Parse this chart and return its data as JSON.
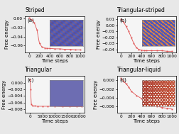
{
  "panels": [
    {
      "title": "Striped",
      "label": "(a)",
      "xlabel": "Time steps",
      "ylabel": "Free energy",
      "xlim": [
        -80,
        1080
      ],
      "ylim": [
        -0.075,
        0.005
      ],
      "yticks": [
        0,
        -0.02,
        -0.04,
        -0.06
      ],
      "xticks": [
        0,
        200,
        400,
        600,
        800,
        1000
      ],
      "x_data": [
        0,
        50,
        100,
        150,
        200,
        250,
        300,
        350,
        400,
        500,
        600,
        700,
        800,
        900,
        1000
      ],
      "y_data": [
        0.001,
        -0.003,
        -0.01,
        -0.025,
        -0.055,
        -0.063,
        -0.065,
        -0.066,
        -0.066,
        -0.067,
        -0.067,
        -0.068,
        -0.068,
        -0.069,
        -0.069
      ],
      "inset_type": "striped",
      "line_color": "#e05050",
      "marker_color": "#e05050"
    },
    {
      "title": "Triangular-striped",
      "label": "(b)",
      "xlabel": "Time steps",
      "ylabel": "Free energy",
      "xlim": [
        -80,
        1080
      ],
      "ylim": [
        -0.045,
        0.015
      ],
      "yticks": [
        0.01,
        0,
        -0.01,
        -0.02,
        -0.03,
        -0.04
      ],
      "xticks": [
        0,
        200,
        400,
        600,
        800,
        1000
      ],
      "x_data": [
        0,
        50,
        100,
        150,
        200,
        250,
        300,
        350,
        400,
        450,
        500,
        600,
        700,
        800,
        900,
        1000
      ],
      "y_data": [
        0.01,
        0.005,
        -0.002,
        -0.01,
        -0.02,
        -0.03,
        -0.037,
        -0.04,
        -0.041,
        -0.042,
        -0.042,
        -0.042,
        -0.042,
        -0.042,
        -0.043,
        -0.043
      ],
      "inset_type": "triangular_striped",
      "line_color": "#e05050",
      "marker_color": "#e05050"
    },
    {
      "title": "Triangular",
      "label": "(c)",
      "xlabel": "Time steps",
      "ylabel": "Free energy",
      "xlim": [
        -2000,
        22000
      ],
      "ylim": [
        -0.009,
        0.002
      ],
      "yticks": [
        0,
        -0.002,
        -0.004,
        -0.006,
        -0.008
      ],
      "xticks": [
        0,
        5000,
        10000,
        15000,
        20000
      ],
      "x_data": [
        0,
        200,
        500,
        1000,
        2000,
        3000,
        5000,
        7000,
        10000,
        13000,
        16000,
        19000,
        21000
      ],
      "y_data": [
        0.001,
        -0.002,
        -0.0065,
        -0.007,
        -0.007,
        -0.0071,
        -0.0071,
        -0.0071,
        -0.0071,
        -0.0072,
        -0.0072,
        -0.0072,
        -0.0072
      ],
      "inset_type": "triangular",
      "line_color": "#e05050",
      "marker_color": "#e05050"
    },
    {
      "title": "Triangular-liquid",
      "label": "(d)",
      "xlabel": "Time steps",
      "ylabel": "Free energy",
      "xlim": [
        -80,
        1080
      ],
      "ylim": [
        -0.0075,
        0.001
      ],
      "yticks": [
        0,
        -0.002,
        -0.004,
        -0.006
      ],
      "xticks": [
        0,
        200,
        400,
        600,
        800,
        1000
      ],
      "x_data": [
        0,
        50,
        100,
        150,
        200,
        300,
        400,
        500,
        600,
        700,
        800,
        900,
        1000
      ],
      "y_data": [
        0.0005,
        -0.0002,
        -0.0008,
        -0.0015,
        -0.0025,
        -0.0035,
        -0.0042,
        -0.005,
        -0.0055,
        -0.006,
        -0.0063,
        -0.0065,
        -0.0067
      ],
      "inset_type": "triangular_liquid",
      "line_color": "#e05050",
      "marker_color": "#e05050"
    }
  ],
  "fig_facecolor": "#e8e8e8",
  "panel_facecolor": "#f5f5f5",
  "title_fontsize": 5.5,
  "label_fontsize": 5.0,
  "tick_fontsize": 4.2
}
